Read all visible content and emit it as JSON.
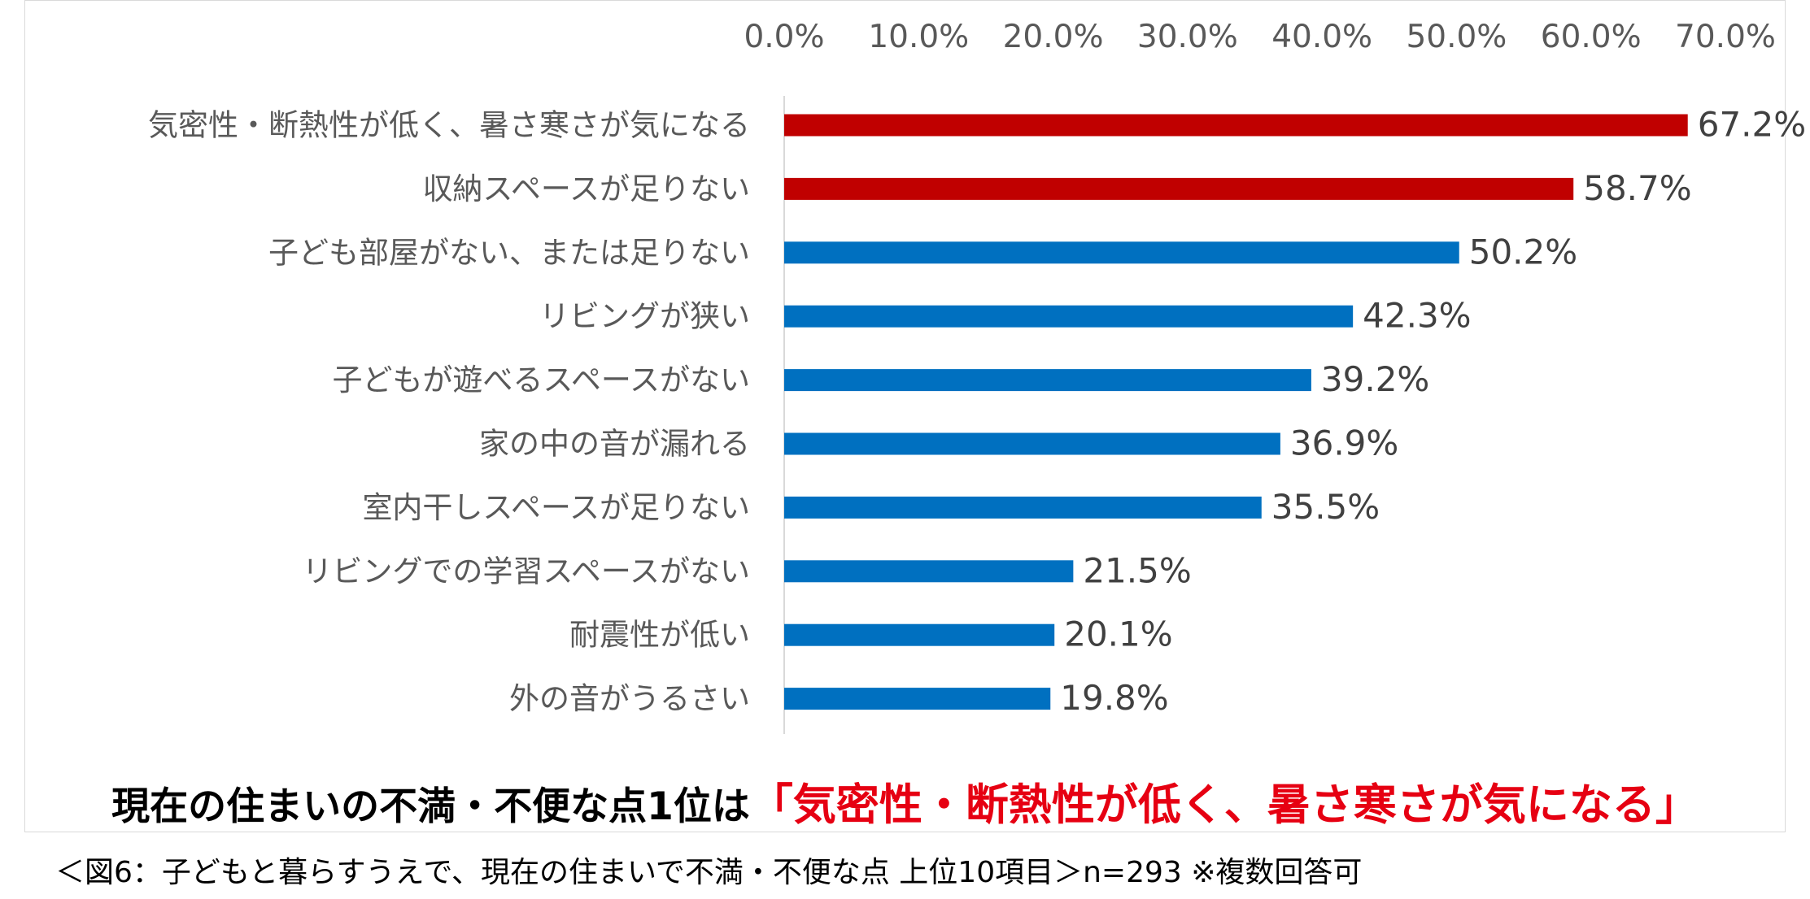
{
  "colors": {
    "highlight_bar": "#c00000",
    "normal_bar": "#0070c0",
    "headline_highlight": "#e60012"
  },
  "chart_data": {
    "type": "bar",
    "orientation": "horizontal",
    "xlim": [
      0,
      70
    ],
    "x_ticks": [
      "0.0%",
      "10.0%",
      "20.0%",
      "30.0%",
      "40.0%",
      "50.0%",
      "60.0%",
      "70.0%"
    ],
    "x_axis_position": "top",
    "grid": false,
    "categories": [
      "気密性・断熱性が低く、暑さ寒さが気になる",
      "収納スペースが足りない",
      "子ども部屋がない、または足りない",
      "リビングが狭い",
      "子どもが遊べるスペースがない",
      "家の中の音が漏れる",
      "室内干しスペースが足りない",
      "リビングでの学習スペースがない",
      "耐震性が低い",
      "外の音がうるさい"
    ],
    "values": [
      67.2,
      58.7,
      50.2,
      42.3,
      39.2,
      36.9,
      35.5,
      21.5,
      20.1,
      19.8
    ],
    "value_labels": [
      "67.2%",
      "58.7%",
      "50.2%",
      "42.3%",
      "39.2%",
      "36.9%",
      "35.5%",
      "21.5%",
      "20.1%",
      "19.8%"
    ],
    "highlighted": [
      true,
      true,
      false,
      false,
      false,
      false,
      false,
      false,
      false,
      false
    ]
  },
  "headline": {
    "prefix": "現在の住まいの不満・不便な点1位は",
    "highlight": "「気密性・断熱性が低く、暑さ寒さが気になる」"
  },
  "caption": "＜図6：子どもと暮らすうえで、現在の住まいで不満・不便な点 上位10項目＞n=293 ※複数回答可"
}
